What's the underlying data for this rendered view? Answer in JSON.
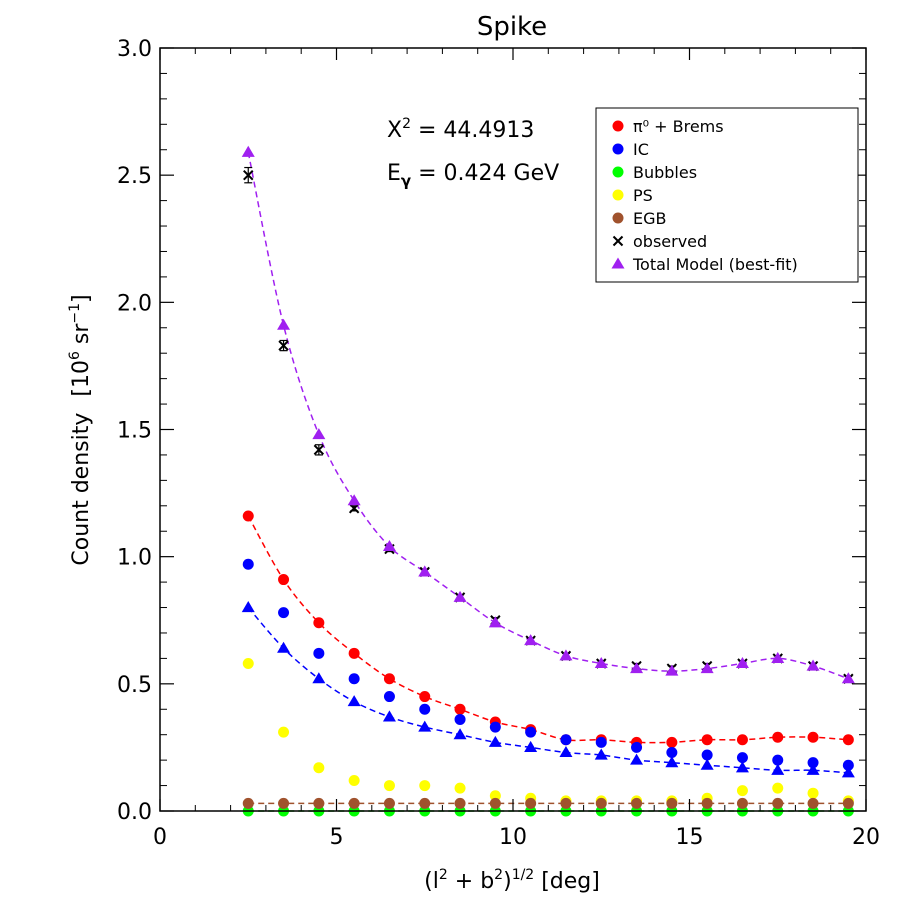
{
  "chart_data": {
    "type": "scatter",
    "title": "Spike",
    "xlabel": {
      "base": "(l",
      "sup1": "2",
      "mid": " + b",
      "sup2": "2",
      "close": ")",
      "sup3": "1/2",
      "unit": " [deg]"
    },
    "ylabel": {
      "text": "Count density",
      "unit_open": "[10",
      "unit_sup": "6",
      "unit_mid": " sr",
      "unit_sup2": "−1",
      "unit_close": "]"
    },
    "xlim": [
      0,
      20
    ],
    "ylim": [
      0,
      3.0
    ],
    "xticks": [
      "0",
      "5",
      "10",
      "15",
      "20"
    ],
    "yticks": [
      "0.0",
      "0.5",
      "1.0",
      "1.5",
      "2.0",
      "2.5",
      "3.0"
    ],
    "annotations": {
      "chi2_label": "X",
      "chi2_sup": "2",
      "chi2_value": " = 44.4913",
      "energy_label": "E",
      "energy_sub": "γ",
      "energy_value": " = 0.424 GeV"
    },
    "legend_position": "top-right",
    "legend": [
      {
        "label": "π⁰ + Brems",
        "color": "#ff0000",
        "marker": "circle"
      },
      {
        "label": "IC",
        "color": "#0000ff",
        "marker": "circle"
      },
      {
        "label": "Bubbles",
        "color": "#00ff00",
        "marker": "circle"
      },
      {
        "label": "PS",
        "color": "#ffff00",
        "marker": "circle"
      },
      {
        "label": "EGB",
        "color": "#a0522d",
        "marker": "circle"
      },
      {
        "label": "observed",
        "color": "#000000",
        "marker": "x"
      },
      {
        "label": "Total Model (best-fit)",
        "color": "#a020f0",
        "marker": "triangle"
      }
    ],
    "x": [
      2.5,
      3.5,
      4.5,
      5.5,
      6.5,
      7.5,
      8.5,
      9.5,
      10.5,
      11.5,
      12.5,
      13.5,
      14.5,
      15.5,
      16.5,
      17.5,
      18.5,
      19.5
    ],
    "series": [
      {
        "name": "π⁰ + Brems",
        "color": "#ff0000",
        "marker": "circle",
        "dashed_line": true,
        "dash_color": "#ff0000",
        "values": [
          1.16,
          0.91,
          0.74,
          0.62,
          0.52,
          0.45,
          0.4,
          0.35,
          0.32,
          0.28,
          0.28,
          0.27,
          0.27,
          0.28,
          0.28,
          0.29,
          0.29,
          0.28
        ]
      },
      {
        "name": "IC",
        "color": "#0000ff",
        "marker": "circle",
        "dashed_line": false,
        "values": [
          0.97,
          0.78,
          0.62,
          0.52,
          0.45,
          0.4,
          0.36,
          0.33,
          0.31,
          0.28,
          0.27,
          0.25,
          0.23,
          0.22,
          0.21,
          0.2,
          0.19,
          0.18
        ]
      },
      {
        "name": "Bubbles",
        "color": "#00ff00",
        "marker": "circle",
        "dashed_line": true,
        "dash_color": "#00c800",
        "values": [
          0.0,
          0.0,
          0.0,
          0.0,
          0.0,
          0.0,
          0.0,
          0.0,
          0.0,
          0.0,
          0.0,
          0.0,
          0.0,
          0.0,
          0.0,
          0.0,
          0.0,
          0.0
        ]
      },
      {
        "name": "PS",
        "color": "#ffff00",
        "marker": "circle",
        "dashed_line": false,
        "values": [
          0.58,
          0.31,
          0.17,
          0.12,
          0.1,
          0.1,
          0.09,
          0.06,
          0.05,
          0.04,
          0.04,
          0.04,
          0.04,
          0.05,
          0.08,
          0.09,
          0.07,
          0.04
        ]
      },
      {
        "name": "EGB",
        "color": "#a0522d",
        "marker": "circle",
        "dashed_line": true,
        "dash_color": "#a0522d",
        "values": [
          0.03,
          0.03,
          0.03,
          0.03,
          0.03,
          0.03,
          0.03,
          0.03,
          0.03,
          0.03,
          0.03,
          0.03,
          0.03,
          0.03,
          0.03,
          0.03,
          0.03,
          0.03
        ]
      },
      {
        "name": "IC (dashed triangles)",
        "color": "#0000ff",
        "marker": "triangle",
        "dashed_line": true,
        "dash_color": "#0000ff",
        "values": [
          0.8,
          0.64,
          0.52,
          0.43,
          0.37,
          0.33,
          0.3,
          0.27,
          0.25,
          0.23,
          0.22,
          0.2,
          0.19,
          0.18,
          0.17,
          0.16,
          0.16,
          0.15
        ]
      },
      {
        "name": "observed",
        "color": "#000000",
        "marker": "x",
        "dashed_line": false,
        "values": [
          2.5,
          1.83,
          1.42,
          1.19,
          1.03,
          0.94,
          0.84,
          0.75,
          0.67,
          0.61,
          0.58,
          0.57,
          0.56,
          0.57,
          0.58,
          0.6,
          0.57,
          0.52
        ],
        "errors": [
          0.03,
          0.02,
          0.02,
          0.01,
          0.01,
          0.01,
          0.01,
          0.01,
          0.01,
          0.01,
          0.01,
          0.01,
          0.01,
          0.01,
          0.01,
          0.01,
          0.01,
          0.01
        ]
      },
      {
        "name": "Total Model (best-fit)",
        "color": "#a020f0",
        "marker": "triangle",
        "dashed_line": true,
        "dash_color": "#a020f0",
        "values": [
          2.59,
          1.91,
          1.48,
          1.22,
          1.04,
          0.94,
          0.84,
          0.74,
          0.67,
          0.61,
          0.58,
          0.56,
          0.55,
          0.56,
          0.58,
          0.6,
          0.57,
          0.52
        ]
      }
    ]
  }
}
